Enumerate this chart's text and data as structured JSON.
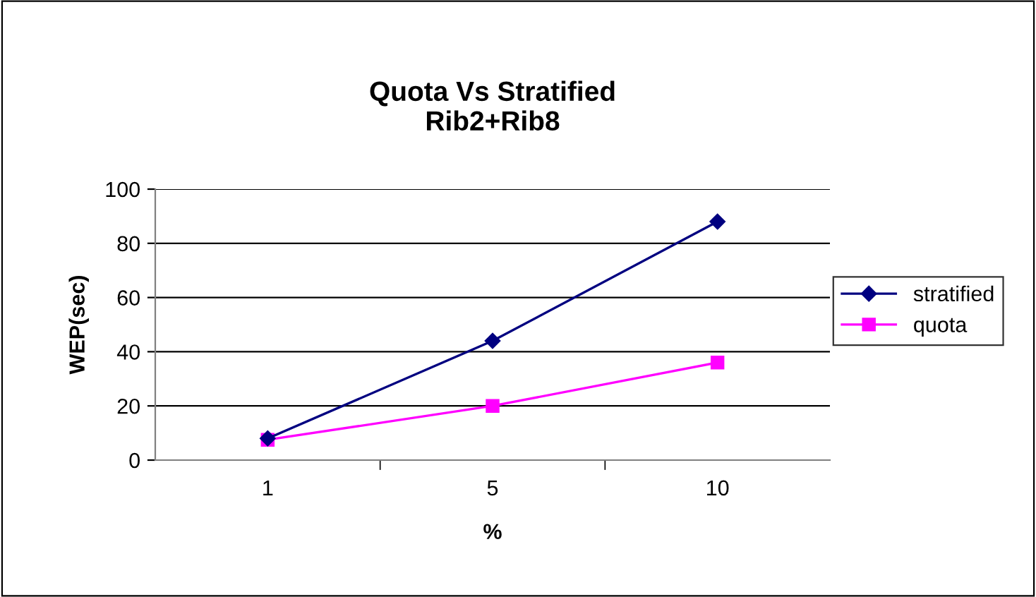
{
  "chart_data": {
    "type": "line",
    "title": "Quota Vs Stratified\nRib2+Rib8",
    "xlabel": "%",
    "ylabel": "WEP(sec)",
    "categories": [
      "1",
      "5",
      "10"
    ],
    "series": [
      {
        "name": "stratified",
        "color": "#000080",
        "marker": "diamond",
        "values": [
          8,
          44,
          88
        ]
      },
      {
        "name": "quota",
        "color": "#ff00ff",
        "marker": "square",
        "values": [
          7.5,
          20,
          36
        ]
      }
    ],
    "ylim": [
      0,
      100
    ],
    "yticks": [
      0,
      20,
      40,
      60,
      80,
      100
    ],
    "grid": "y",
    "legend": "right"
  }
}
